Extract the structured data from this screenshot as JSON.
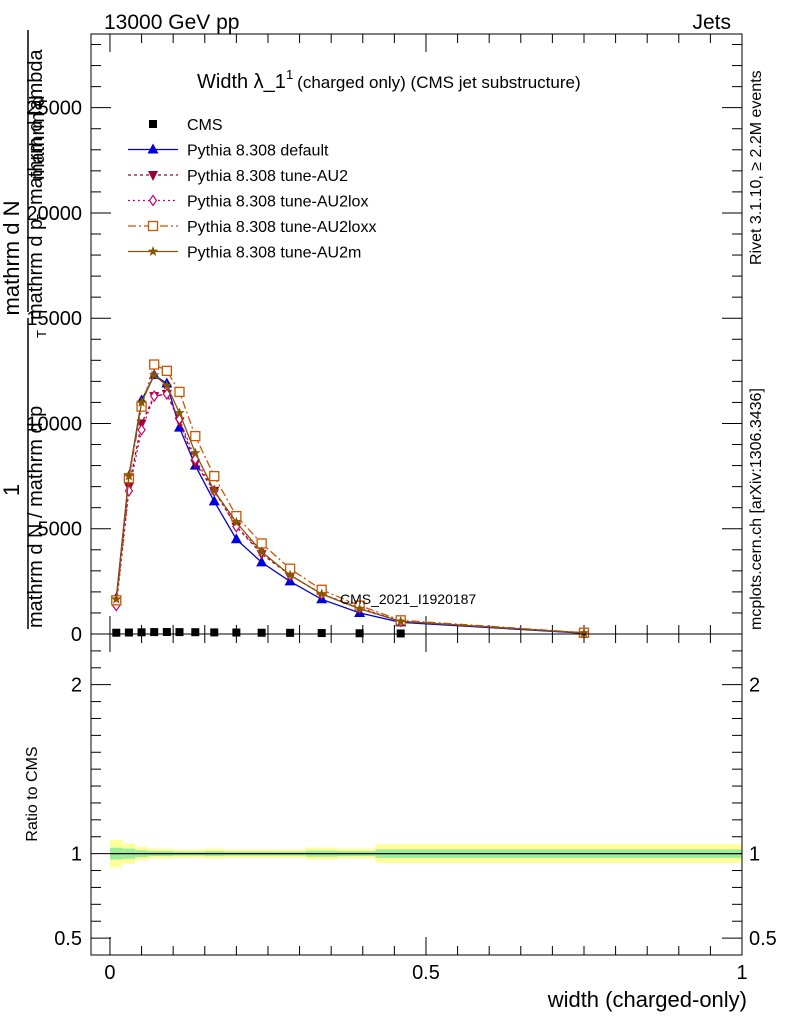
{
  "header": {
    "left": "13000 GeV pp",
    "right": "Jets"
  },
  "side": {
    "rivet": "Rivet 3.1.10, ≥ 2.2M events",
    "mcplots": "mcplots.cern.ch [arXiv:1306.3436]"
  },
  "watermark": "CMS_2021_I1920187",
  "chart_data": [
    {
      "type": "line",
      "title": {
        "main": "Width λ_1",
        "sup": "1",
        "rest": "(charged only) (CMS jet substructure)"
      },
      "ylabel_lines": [
        "1",
        "mathrm d N / mathrm d p",
        "T",
        "mathrm d N",
        "mathrm d p",
        "T",
        "mathrm d lambda",
        "mathrm d"
      ],
      "ylim": [
        0,
        28500
      ],
      "yticks": [
        0,
        5000,
        10000,
        15000,
        20000,
        25000
      ],
      "ytick_labels": [
        "0",
        "5000",
        "10000",
        "15000",
        "20000",
        "25000"
      ],
      "xlim": [
        -0.03,
        1.0
      ],
      "legend_position": "top-left",
      "x": [
        0.01,
        0.03,
        0.05,
        0.07,
        0.09,
        0.11,
        0.135,
        0.165,
        0.2,
        0.24,
        0.285,
        0.335,
        0.395,
        0.46,
        0.75
      ],
      "series": [
        {
          "name": "CMS",
          "color": "#000000",
          "marker": "square",
          "values": [
            60,
            70,
            80,
            90,
            95,
            90,
            85,
            75,
            70,
            60,
            55,
            45,
            35,
            25,
            10
          ]
        },
        {
          "name": "Pythia 8.308 default",
          "color": "#0000dd",
          "marker": "triangle-up",
          "dash": "solid",
          "values": [
            1700,
            7500,
            11100,
            12300,
            11900,
            9800,
            8000,
            6300,
            4500,
            3400,
            2500,
            1650,
            1000,
            550,
            40
          ]
        },
        {
          "name": "Pythia 8.308 tune-AU2",
          "color": "#990033",
          "marker": "triangle-down",
          "dash": "3,3",
          "values": [
            1450,
            7000,
            10000,
            11300,
            11400,
            10100,
            8100,
            6800,
            5100,
            3800,
            2800,
            1900,
            1200,
            600,
            50
          ]
        },
        {
          "name": "Pythia 8.308 tune-AU2lox",
          "color": "#cc0066",
          "marker": "diamond-open",
          "dash": "2,3",
          "values": [
            1350,
            6800,
            9700,
            11300,
            11400,
            10200,
            8300,
            6800,
            5100,
            3900,
            2800,
            1900,
            1250,
            600,
            50
          ]
        },
        {
          "name": "Pythia 8.308 tune-AU2loxx",
          "color": "#cc5500",
          "marker": "square-open",
          "dash": "8,3,2,3",
          "values": [
            1600,
            7400,
            10800,
            12800,
            12500,
            11500,
            9400,
            7500,
            5600,
            4300,
            3100,
            2100,
            1350,
            650,
            60
          ]
        },
        {
          "name": "Pythia 8.308 tune-AU2m",
          "color": "#885500",
          "marker": "star",
          "dash": "solid",
          "values": [
            1650,
            7500,
            11000,
            12300,
            11800,
            10500,
            8600,
            6800,
            5300,
            3900,
            2800,
            1900,
            1200,
            600,
            50
          ]
        }
      ]
    },
    {
      "type": "area",
      "ylabel": "Ratio to CMS",
      "xlabel": "width (charged-only)",
      "ylim": [
        0.4,
        2.3
      ],
      "yticks": [
        0.5,
        1,
        2
      ],
      "ytick_labels": [
        "0.5",
        "1",
        "2"
      ],
      "xticks": [
        0,
        0.5,
        1
      ],
      "xtick_labels": [
        "0",
        "0.5",
        "1"
      ],
      "xlim": [
        -0.03,
        1.0
      ],
      "bins": [
        0,
        0.02,
        0.04,
        0.06,
        0.08,
        0.1,
        0.12,
        0.15,
        0.18,
        0.22,
        0.26,
        0.31,
        0.36,
        0.42,
        0.5,
        1.0
      ],
      "band_outer": [
        0.08,
        0.06,
        0.04,
        0.03,
        0.03,
        0.025,
        0.025,
        0.03,
        0.025,
        0.025,
        0.025,
        0.035,
        0.03,
        0.055,
        0.055
      ],
      "band_inner": [
        0.035,
        0.03,
        0.02,
        0.015,
        0.015,
        0.012,
        0.012,
        0.015,
        0.012,
        0.012,
        0.012,
        0.018,
        0.015,
        0.025,
        0.025
      ],
      "band_outer_color": "#ffff99",
      "band_inner_color": "#99ee99",
      "reference": 1
    }
  ]
}
